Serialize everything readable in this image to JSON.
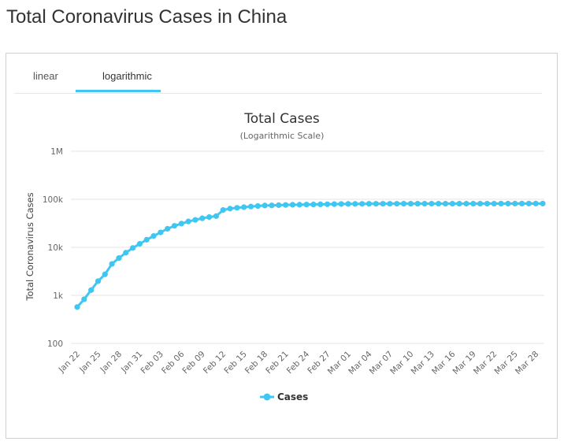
{
  "page": {
    "title": "Total Coronavirus Cases in China"
  },
  "tabs": [
    {
      "label": "linear",
      "active": false
    },
    {
      "label": "logarithmic",
      "active": true
    }
  ],
  "colors": {
    "series": "#3fc7f2",
    "grid": "#e6e6e6",
    "tab_accent": "#3fc7f2"
  },
  "chart_data": {
    "type": "line",
    "title": "Total Cases",
    "subtitle": "(Logarithmic Scale)",
    "ylabel": "Total Coronavirus Cases",
    "xlabel": "",
    "yscale": "log",
    "ylim": [
      100,
      1000000
    ],
    "yticks": [
      {
        "value": 100,
        "label": "100"
      },
      {
        "value": 1000,
        "label": "1k"
      },
      {
        "value": 10000,
        "label": "10k"
      },
      {
        "value": 100000,
        "label": "100k"
      },
      {
        "value": 1000000,
        "label": "1M"
      }
    ],
    "grid": true,
    "legend": {
      "position": "bottom-center",
      "entries": [
        "Cases"
      ]
    },
    "x_tick_labels": [
      "Jan 22",
      "Jan 25",
      "Jan 28",
      "Jan 31",
      "Feb 03",
      "Feb 06",
      "Feb 09",
      "Feb 12",
      "Feb 15",
      "Feb 18",
      "Feb 21",
      "Feb 24",
      "Feb 27",
      "Mar 01",
      "Mar 04",
      "Mar 07",
      "Mar 10",
      "Mar 13",
      "Mar 16",
      "Mar 19",
      "Mar 22",
      "Mar 25",
      "Mar 28"
    ],
    "x": [
      "Jan 22",
      "Jan 23",
      "Jan 24",
      "Jan 25",
      "Jan 26",
      "Jan 27",
      "Jan 28",
      "Jan 29",
      "Jan 30",
      "Jan 31",
      "Feb 01",
      "Feb 02",
      "Feb 03",
      "Feb 04",
      "Feb 05",
      "Feb 06",
      "Feb 07",
      "Feb 08",
      "Feb 09",
      "Feb 10",
      "Feb 11",
      "Feb 12",
      "Feb 13",
      "Feb 14",
      "Feb 15",
      "Feb 16",
      "Feb 17",
      "Feb 18",
      "Feb 19",
      "Feb 20",
      "Feb 21",
      "Feb 22",
      "Feb 23",
      "Feb 24",
      "Feb 25",
      "Feb 26",
      "Feb 27",
      "Feb 28",
      "Feb 29",
      "Mar 01",
      "Mar 02",
      "Mar 03",
      "Mar 04",
      "Mar 05",
      "Mar 06",
      "Mar 07",
      "Mar 08",
      "Mar 09",
      "Mar 10",
      "Mar 11",
      "Mar 12",
      "Mar 13",
      "Mar 14",
      "Mar 15",
      "Mar 16",
      "Mar 17",
      "Mar 18",
      "Mar 19",
      "Mar 20",
      "Mar 21",
      "Mar 22",
      "Mar 23",
      "Mar 24",
      "Mar 25",
      "Mar 26",
      "Mar 27",
      "Mar 28",
      "Mar 29"
    ],
    "series": [
      {
        "name": "Cases",
        "values": [
          571,
          830,
          1287,
          1975,
          2744,
          4515,
          5974,
          7711,
          9692,
          11791,
          14380,
          17205,
          20438,
          24324,
          28018,
          31161,
          34546,
          37198,
          40171,
          42638,
          44653,
          59804,
          63851,
          66492,
          68500,
          70548,
          72436,
          74185,
          74576,
          75465,
          76288,
          76936,
          77150,
          77658,
          78064,
          78497,
          78824,
          79251,
          79824,
          80026,
          80151,
          80270,
          80409,
          80552,
          80651,
          80695,
          80735,
          80754,
          80778,
          80793,
          80813,
          80824,
          80844,
          80860,
          80881,
          80894,
          80928,
          80967,
          81008,
          81054,
          81093,
          81171,
          81218,
          81285,
          81340,
          81394,
          81439,
          81470
        ]
      }
    ]
  }
}
